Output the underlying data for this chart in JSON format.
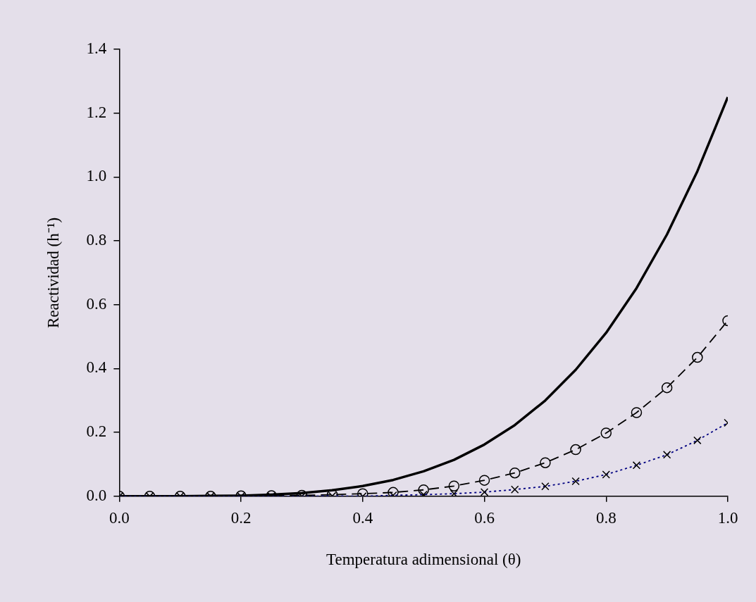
{
  "chart_data": {
    "type": "line",
    "xlabel": "Temperatura adimensional (θ)",
    "ylabel": "Reactividad (h⁻¹)",
    "x": [
      0,
      0.05,
      0.1,
      0.15,
      0.2,
      0.25,
      0.3,
      0.35,
      0.4,
      0.45,
      0.5,
      0.55,
      0.6,
      0.65,
      0.7,
      0.75,
      0.8,
      0.85,
      0.9,
      0.95,
      1.0
    ],
    "series": [
      {
        "color": "#000000",
        "marker": "none",
        "line_style": "solid",
        "values": [
          0,
          0,
          0,
          0.001,
          0.002,
          0.005,
          0.01,
          0.019,
          0.032,
          0.051,
          0.078,
          0.114,
          0.162,
          0.223,
          0.3,
          0.396,
          0.512,
          0.652,
          0.82,
          1.018,
          1.25
        ]
      },
      {
        "color": "#000000",
        "marker": "circle",
        "line_style": "dashed",
        "values": [
          0,
          0,
          0,
          0,
          0.001,
          0.002,
          0.003,
          0.005,
          0.008,
          0.012,
          0.02,
          0.032,
          0.05,
          0.073,
          0.105,
          0.146,
          0.198,
          0.262,
          0.34,
          0.435,
          0.55
        ]
      },
      {
        "color": "#000080",
        "marker": "cross",
        "line_style": "dotted",
        "values": [
          0,
          0,
          0,
          0,
          0,
          0,
          0,
          0.001,
          0,
          0.003,
          0.005,
          0.008,
          0.013,
          0.021,
          0.031,
          0.047,
          0.068,
          0.097,
          0.13,
          0.175,
          0.23
        ]
      }
    ],
    "xlim": [
      0,
      1
    ],
    "xticks": [
      {
        "value": 0,
        "label": "0.0"
      },
      {
        "value": 0.2,
        "label": "0.2"
      },
      {
        "value": 0.4,
        "label": "0.4"
      },
      {
        "value": 0.6,
        "label": "0.6"
      },
      {
        "value": 0.8,
        "label": "0.8"
      },
      {
        "value": 1,
        "label": "1.0"
      }
    ],
    "ylim": [
      0,
      1.4
    ],
    "yticks": [
      {
        "value": 0,
        "label": "0.0"
      },
      {
        "value": 0.2,
        "label": "0.2"
      },
      {
        "value": 0.4,
        "label": "0.4"
      },
      {
        "value": 0.6,
        "label": "0.6"
      },
      {
        "value": 0.8,
        "label": "0.8"
      },
      {
        "value": 1,
        "label": "1.0"
      },
      {
        "value": 1.2,
        "label": "1.2"
      },
      {
        "value": 1.4,
        "label": "1.4"
      }
    ],
    "grid": false,
    "legend": false
  }
}
